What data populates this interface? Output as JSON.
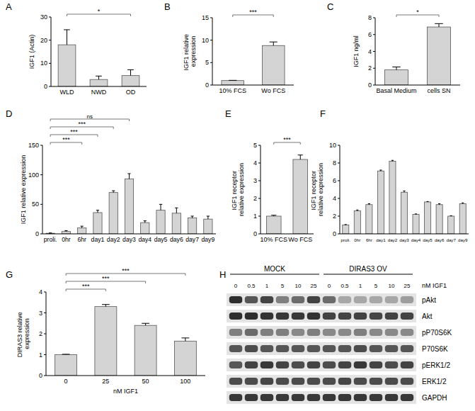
{
  "chart_data": [
    {
      "panel": "A",
      "type": "bar",
      "categories": [
        "WLD",
        "NWD",
        "OD"
      ],
      "values": [
        18,
        3,
        4.7
      ],
      "errors": [
        6.5,
        1.5,
        2.5
      ],
      "ylabel": "IGF1 (Actin)",
      "ylim": [
        0,
        30
      ],
      "yticks": [
        0,
        10,
        20,
        30
      ],
      "color": "#d4d4d4",
      "annotations": [
        {
          "from": "WLD",
          "to": "OD",
          "label": "*"
        }
      ]
    },
    {
      "panel": "B",
      "type": "bar",
      "categories": [
        "10% FCS",
        "Wo FCS"
      ],
      "values": [
        1,
        8.8
      ],
      "errors": [
        0.05,
        0.8
      ],
      "ylabel": "IGF1 relative expression",
      "ylim": [
        0,
        15
      ],
      "yticks": [
        0,
        5,
        10,
        15
      ],
      "color": "#d4d4d4",
      "annotations": [
        {
          "from": "10% FCS",
          "to": "Wo FCS",
          "label": "***"
        }
      ]
    },
    {
      "panel": "C",
      "type": "bar",
      "categories": [
        "Basal Medium",
        "cells SN"
      ],
      "values": [
        1.8,
        6.9
      ],
      "errors": [
        0.35,
        0.4
      ],
      "ylabel": "IGF1 ng/ml",
      "ylim": [
        0,
        8
      ],
      "yticks": [
        0,
        2,
        4,
        6,
        8
      ],
      "color": "#d4d4d4",
      "annotations": [
        {
          "from": "Basal Medium",
          "to": "cells SN",
          "label": "*"
        }
      ]
    },
    {
      "panel": "D",
      "type": "bar",
      "categories": [
        "proli.",
        "0hr",
        "6hr",
        "day1",
        "day2",
        "day3",
        "day4",
        "day5",
        "day6",
        "day7",
        "day9"
      ],
      "values": [
        1,
        4,
        10,
        36,
        70,
        93,
        19,
        40,
        35,
        27,
        25
      ],
      "errors": [
        0.5,
        1.5,
        3,
        4,
        3,
        9,
        3,
        10,
        9,
        3,
        5
      ],
      "ylabel": "IGF1 relative expression",
      "ylim": [
        0,
        150
      ],
      "yticks": [
        0,
        50,
        100,
        150
      ],
      "color": "#d4d4d4",
      "annotations": [
        {
          "from": "proli.",
          "to": "day3",
          "label": "ns"
        },
        {
          "from": "proli.",
          "to": "day2",
          "label": "***"
        },
        {
          "from": "proli.",
          "to": "day1",
          "label": "***"
        },
        {
          "from": "proli.",
          "to": "6hr",
          "label": "***"
        }
      ]
    },
    {
      "panel": "E",
      "type": "bar",
      "categories": [
        "10% FCS",
        "Wo FCS"
      ],
      "values": [
        1,
        4.2
      ],
      "errors": [
        0.05,
        0.25
      ],
      "ylabel": "IGF1 receptor relative expression",
      "ylim": [
        0,
        5
      ],
      "yticks": [
        0,
        1,
        2,
        3,
        4,
        5
      ],
      "color": "#d4d4d4",
      "annotations": [
        {
          "from": "10% FCS",
          "to": "Wo FCS",
          "label": "***"
        }
      ]
    },
    {
      "panel": "F",
      "type": "bar",
      "categories": [
        "proli.",
        "0hr",
        "6hr",
        "day1",
        "day2",
        "day3",
        "day4",
        "day5",
        "day6",
        "day7",
        "day9"
      ],
      "values": [
        1,
        2.6,
        3.3,
        7.1,
        8.2,
        4.7,
        2.2,
        3.6,
        3.3,
        2.0,
        3.4
      ],
      "errors": [
        0.05,
        0.1,
        0.1,
        0.1,
        0.1,
        0.15,
        0.05,
        0.05,
        0.1,
        0.05,
        0.1
      ],
      "ylabel": "IGF1 receptor relative expression",
      "ylim": [
        0,
        10
      ],
      "yticks": [
        0,
        2,
        4,
        6,
        8,
        10
      ],
      "color": "#d4d4d4"
    },
    {
      "panel": "G",
      "type": "bar",
      "categories": [
        "0",
        "25",
        "50",
        "100"
      ],
      "values": [
        1,
        3.3,
        2.4,
        1.65
      ],
      "errors": [
        0.02,
        0.1,
        0.1,
        0.15
      ],
      "ylabel": "DIRAS3 relative expression",
      "xlabel": "nM IGF1",
      "ylim": [
        0,
        4
      ],
      "yticks": [
        0,
        1,
        2,
        3,
        4
      ],
      "color": "#d4d4d4",
      "annotations": [
        {
          "from": "0",
          "to": "100",
          "label": "***"
        },
        {
          "from": "0",
          "to": "50",
          "label": "***"
        },
        {
          "from": "0",
          "to": "25",
          "label": "***"
        }
      ]
    }
  ],
  "blot": {
    "panel": "H",
    "groups": [
      "MOCK",
      "DIRAS3 OV"
    ],
    "doses": [
      0,
      0.5,
      1,
      5,
      10,
      25
    ],
    "dose_unit": "nM IGF1",
    "rows": [
      {
        "label": "pAkt",
        "intensity": [
          0.9,
          0.7,
          0.8,
          0.5,
          0.6,
          0.8,
          0.6,
          0.3,
          0.3,
          0.3,
          0.3,
          0.35
        ]
      },
      {
        "label": "Akt",
        "intensity": [
          0.9,
          0.9,
          0.88,
          0.85,
          0.85,
          0.88,
          0.8,
          0.8,
          0.8,
          0.78,
          0.8,
          0.8
        ]
      },
      {
        "label": "pP70S6K",
        "intensity": [
          0.5,
          0.6,
          0.5,
          0.5,
          0.45,
          0.5,
          0.45,
          0.45,
          0.5,
          0.45,
          0.45,
          0.45
        ]
      },
      {
        "label": "P70S6K",
        "intensity": [
          0.7,
          0.75,
          0.7,
          0.7,
          0.7,
          0.7,
          0.7,
          0.7,
          0.75,
          0.7,
          0.7,
          0.7
        ]
      },
      {
        "label": "pERK1/2",
        "intensity": [
          0.7,
          0.8,
          0.85,
          0.8,
          0.75,
          0.8,
          0.75,
          0.8,
          0.85,
          0.8,
          0.75,
          0.8
        ]
      },
      {
        "label": "ERK1/2",
        "intensity": [
          0.75,
          0.75,
          0.78,
          0.75,
          0.75,
          0.75,
          0.75,
          0.78,
          0.75,
          0.75,
          0.75,
          0.75
        ]
      },
      {
        "label": "GAPDH",
        "intensity": [
          0.85,
          0.85,
          0.85,
          0.85,
          0.85,
          0.85,
          0.85,
          0.85,
          0.85,
          0.85,
          0.85,
          0.85
        ]
      }
    ]
  }
}
